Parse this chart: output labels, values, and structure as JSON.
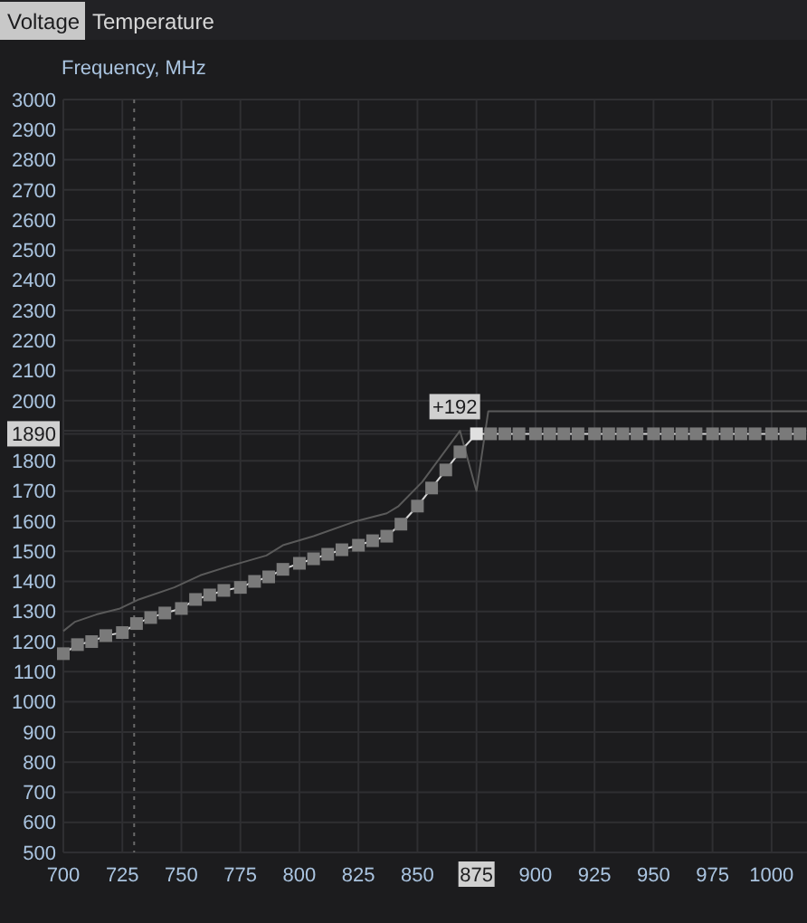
{
  "chart_data": {
    "type": "line",
    "ylabel": "Frequency, MHz",
    "annotations": [
      "Voltage",
      "Temperature",
      {
        "text": "+192",
        "x": 875,
        "y": 1890
      }
    ],
    "xlim": [
      700,
      1015
    ],
    "ylim": [
      500,
      3000
    ],
    "xticks": [
      700,
      725,
      750,
      775,
      800,
      825,
      850,
      875,
      900,
      925,
      950,
      975,
      1000
    ],
    "yticks": [
      500,
      600,
      700,
      800,
      900,
      1000,
      1100,
      1200,
      1300,
      1400,
      1500,
      1600,
      1700,
      1800,
      1890,
      {
        "value": 1900,
        "label": null
      },
      2000,
      2100,
      2200,
      2300,
      2400,
      2500,
      2600,
      2700,
      2800,
      2900,
      3000
    ],
    "grid": true,
    "ref_lines": [
      {
        "axis": "x",
        "value": 730,
        "color": "#6a6a6a",
        "line_style": "dotted"
      }
    ],
    "series": [
      {
        "color": "#5a5a5a",
        "marker": "none",
        "x": [
          700,
          705,
          714,
          724,
          732,
          747,
          758,
          770,
          786,
          793,
          806,
          824,
          837,
          842,
          852,
          868,
          875,
          880,
          1015
        ],
        "values": [
          1235,
          1266,
          1290,
          1310,
          1340,
          1380,
          1420,
          1450,
          1486,
          1520,
          1550,
          1600,
          1626,
          1650,
          1730,
          1900,
          1700,
          1965,
          1965
        ]
      },
      {
        "color": "#7a7a7a",
        "marker": "square",
        "x": [
          700,
          706,
          712,
          718,
          725,
          731,
          737,
          743,
          750,
          756,
          762,
          768,
          775,
          781,
          787,
          793,
          800,
          806,
          812,
          818,
          825,
          831,
          837,
          843,
          850,
          856,
          862,
          868,
          875,
          881,
          887,
          893,
          900,
          906,
          912,
          918,
          925,
          931,
          937,
          943,
          950,
          956,
          962,
          968,
          975,
          981,
          987,
          993,
          1000,
          1006,
          1012
        ],
        "values": [
          1160,
          1190,
          1200,
          1220,
          1230,
          1260,
          1280,
          1295,
          1310,
          1340,
          1355,
          1370,
          1380,
          1400,
          1415,
          1440,
          1460,
          1475,
          1490,
          1505,
          1520,
          1535,
          1550,
          1590,
          1650,
          1710,
          1770,
          1830,
          1890,
          1890,
          1890,
          1890,
          1890,
          1890,
          1890,
          1890,
          1890,
          1890,
          1890,
          1890,
          1890,
          1890,
          1890,
          1890,
          1890,
          1890,
          1890,
          1890,
          1890,
          1890,
          1890
        ]
      }
    ]
  }
}
